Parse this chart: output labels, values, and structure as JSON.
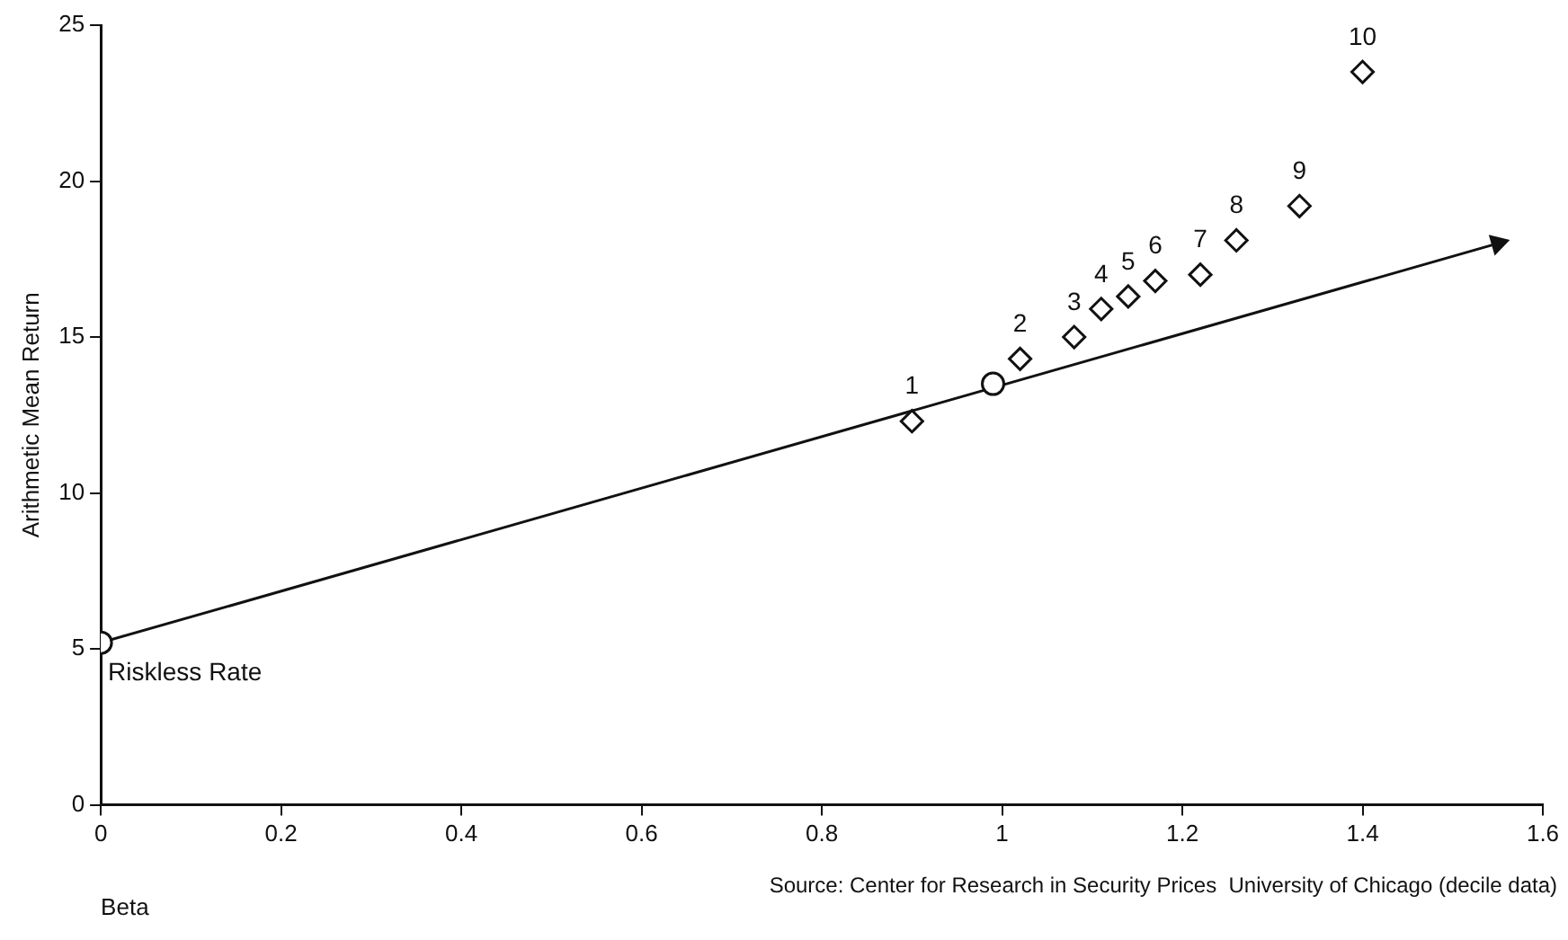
{
  "chart_data": {
    "type": "scatter",
    "xlabel": "Beta",
    "ylabel": "Arithmetic Mean Return",
    "xlim": [
      0,
      1.6
    ],
    "ylim": [
      0,
      25
    ],
    "xticks": [
      0,
      0.2,
      0.4,
      0.6,
      0.8,
      1,
      1.2,
      1.4,
      1.6
    ],
    "yticks": [
      0,
      5,
      10,
      15,
      20,
      25
    ],
    "grid": false,
    "legend": false,
    "series": [
      {
        "type": "line",
        "color": "#111111",
        "marker": "triangle",
        "line_style": "solid",
        "x": [
          0,
          1.55
        ],
        "values": [
          5.2,
          18.0
        ]
      },
      {
        "color": "#111111",
        "marker": "circle",
        "x": [
          0,
          0.99
        ],
        "values": [
          5.2,
          13.5
        ]
      },
      {
        "color": "#111111",
        "marker": "diamond",
        "x": [
          0.9,
          1.02,
          1.08,
          1.11,
          1.14,
          1.17,
          1.22,
          1.26,
          1.33,
          1.4
        ],
        "values": [
          12.3,
          14.3,
          15.0,
          15.9,
          16.3,
          16.8,
          17.0,
          18.1,
          19.2,
          23.5
        ]
      }
    ],
    "annotations": [
      {
        "text": "1",
        "x": 0.9,
        "y": 12.3
      },
      {
        "text": "2",
        "x": 1.02,
        "y": 14.3
      },
      {
        "text": "3",
        "x": 1.08,
        "y": 15.0
      },
      {
        "text": "4",
        "x": 1.11,
        "y": 15.9
      },
      {
        "text": "5",
        "x": 1.14,
        "y": 16.3
      },
      {
        "text": "6",
        "x": 1.17,
        "y": 16.8
      },
      {
        "text": "7",
        "x": 1.22,
        "y": 17.0
      },
      {
        "text": "8",
        "x": 1.26,
        "y": 18.1
      },
      {
        "text": "9",
        "x": 1.33,
        "y": 19.2
      },
      {
        "text": "10",
        "x": 1.4,
        "y": 23.5
      },
      {
        "text": "Riskless Rate",
        "x": 0,
        "y": 5.2
      },
      "Source: Center for Research in Security Prices  University of Chicago (decile data)"
    ]
  }
}
